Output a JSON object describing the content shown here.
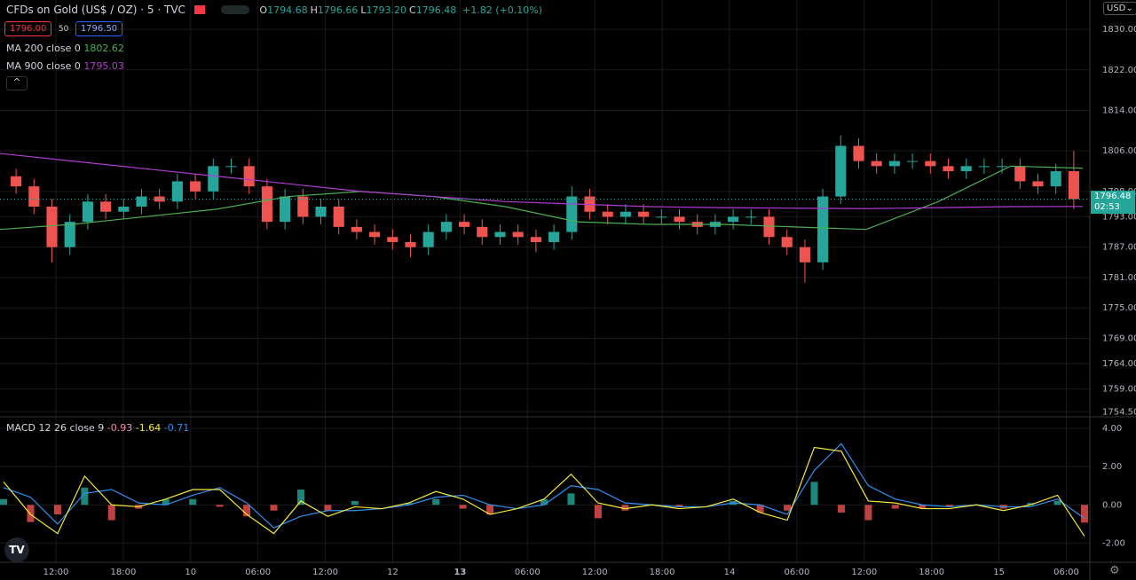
{
  "chart_data": {
    "type": "candlestick",
    "header": {
      "symbol": "CFDs on Gold (US$ / OZ) · 5 · TVC",
      "ohlc": [
        {
          "label": "O",
          "value": "1794.68"
        },
        {
          "label": "H",
          "value": "1796.66"
        },
        {
          "label": "L",
          "value": "1793.20"
        },
        {
          "label": "C",
          "value": "1796.48"
        }
      ],
      "change": "+1.82 (+0.10%)",
      "bid": "1796.00",
      "spread": "50",
      "ask": "1796.50",
      "currency": "USD",
      "last_price": "1796.48",
      "countdown": "02:53"
    },
    "up_color": "#26a69a",
    "down_color": "#ef5350",
    "ylim": [
      1753.5,
      1835.8
    ],
    "yticks": [
      {
        "value": 1830,
        "label": "1830.00"
      },
      {
        "value": 1822,
        "label": "1822.00"
      },
      {
        "value": 1814,
        "label": "1814.00"
      },
      {
        "value": 1806,
        "label": "1806.00"
      },
      {
        "value": 1798,
        "label": "1798.00"
      },
      {
        "value": 1793,
        "label": "1793.00"
      },
      {
        "value": 1787,
        "label": "1787.00"
      },
      {
        "value": 1781,
        "label": "1781.00"
      },
      {
        "value": 1775,
        "label": "1775.00"
      },
      {
        "value": 1769,
        "label": "1769.00"
      },
      {
        "value": 1764,
        "label": "1764.00"
      },
      {
        "value": 1759,
        "label": "1759.00"
      },
      {
        "value": 1754.5,
        "label": "1754.50"
      }
    ],
    "x_labels": [
      "12:00",
      "18:00",
      "10",
      "06:00",
      "12:00",
      "12",
      "13",
      "06:00",
      "12:00",
      "18:00",
      "14",
      "06:00",
      "12:00",
      "18:00",
      "15",
      "06:00"
    ],
    "ohlc": [
      [
        1801,
        1802.5,
        1797.5,
        1799
      ],
      [
        1799,
        1800.5,
        1793.5,
        1795
      ],
      [
        1795,
        1796.5,
        1784,
        1787
      ],
      [
        1787,
        1793.5,
        1785.5,
        1792
      ],
      [
        1792,
        1797.5,
        1790.5,
        1796
      ],
      [
        1796,
        1797.5,
        1792.5,
        1794
      ],
      [
        1794,
        1796.5,
        1792.5,
        1795
      ],
      [
        1795,
        1798.5,
        1793.5,
        1797
      ],
      [
        1797,
        1798.5,
        1794.5,
        1796
      ],
      [
        1796,
        1801.5,
        1794.5,
        1800
      ],
      [
        1800,
        1801.5,
        1796.5,
        1798
      ],
      [
        1798,
        1804.5,
        1796.5,
        1803
      ],
      [
        1803,
        1804.5,
        1801.5,
        1803
      ],
      [
        1803,
        1804.5,
        1797.5,
        1799
      ],
      [
        1799,
        1800.5,
        1790.5,
        1792
      ],
      [
        1792,
        1798.5,
        1790.5,
        1797
      ],
      [
        1797,
        1798.5,
        1791.5,
        1793
      ],
      [
        1793,
        1796.5,
        1791.5,
        1795
      ],
      [
        1795,
        1796.5,
        1789.5,
        1791
      ],
      [
        1791,
        1792.5,
        1788.5,
        1790
      ],
      [
        1790,
        1791.5,
        1787.5,
        1789
      ],
      [
        1789,
        1790.5,
        1786.5,
        1788
      ],
      [
        1788,
        1789.5,
        1785,
        1787
      ],
      [
        1787,
        1791.5,
        1785.5,
        1790
      ],
      [
        1790,
        1793.5,
        1788.5,
        1792
      ],
      [
        1792,
        1793.5,
        1789.5,
        1791
      ],
      [
        1791,
        1792.5,
        1787.5,
        1789
      ],
      [
        1789,
        1791.5,
        1787.5,
        1790
      ],
      [
        1790,
        1791.5,
        1787.5,
        1789
      ],
      [
        1789,
        1790.5,
        1786,
        1788
      ],
      [
        1788,
        1791.5,
        1786.5,
        1790
      ],
      [
        1790,
        1799,
        1788.5,
        1797
      ],
      [
        1797,
        1798.5,
        1792.5,
        1794
      ],
      [
        1794,
        1795.5,
        1791.5,
        1793
      ],
      [
        1793,
        1795.5,
        1791.5,
        1794
      ],
      [
        1794,
        1795.5,
        1791.5,
        1793
      ],
      [
        1793,
        1794.5,
        1791.5,
        1793
      ],
      [
        1793,
        1794.5,
        1790.5,
        1792
      ],
      [
        1792,
        1793.5,
        1789.5,
        1791
      ],
      [
        1791,
        1793.5,
        1789.5,
        1792
      ],
      [
        1792,
        1794.5,
        1790.5,
        1793
      ],
      [
        1793,
        1794.5,
        1791.5,
        1793
      ],
      [
        1793,
        1794.5,
        1787.5,
        1789
      ],
      [
        1789,
        1790.5,
        1785.5,
        1787
      ],
      [
        1787,
        1788.5,
        1780,
        1784
      ],
      [
        1784,
        1798.5,
        1782.5,
        1797
      ],
      [
        1797,
        1809,
        1795.5,
        1807
      ],
      [
        1807,
        1808.5,
        1802.5,
        1804
      ],
      [
        1804,
        1805.5,
        1801.5,
        1803
      ],
      [
        1803,
        1805.5,
        1801.5,
        1804
      ],
      [
        1804,
        1805.5,
        1802.5,
        1804
      ],
      [
        1804,
        1805.5,
        1801.5,
        1803
      ],
      [
        1803,
        1804.5,
        1800.5,
        1802
      ],
      [
        1802,
        1804.5,
        1800.5,
        1803
      ],
      [
        1803,
        1804.5,
        1801.5,
        1803
      ],
      [
        1803,
        1804.5,
        1801.5,
        1803
      ],
      [
        1803,
        1804.5,
        1798.5,
        1800
      ],
      [
        1800,
        1801.5,
        1797.5,
        1799
      ],
      [
        1799,
        1803.5,
        1797.5,
        1802
      ],
      [
        1802,
        1806,
        1794.5,
        1796.48
      ]
    ],
    "series": [
      {
        "name": "MA 200 close 0",
        "color": "#4caf50",
        "last": 1802.62,
        "values": [
          1790.5,
          1791.5,
          1793,
          1794.5,
          1797,
          1798,
          1797,
          1795,
          1792,
          1791.5,
          1791.5,
          1791,
          1790.5,
          1796,
          1803,
          1802.6
        ]
      },
      {
        "name": "MA 900 close 0",
        "color": "#b03bd0",
        "last": 1795.03,
        "values": [
          1805.5,
          1804,
          1802.5,
          1801,
          1799.5,
          1798,
          1797,
          1796,
          1795.5,
          1795,
          1794.8,
          1794.7,
          1794.6,
          1794.8,
          1795,
          1795.03
        ]
      }
    ],
    "macd": {
      "name": "MACD 12 26 close 9",
      "ylim": [
        -3.0,
        4.6
      ],
      "yticks": [
        {
          "value": 4,
          "label": "4.00"
        },
        {
          "value": 2,
          "label": "2.00"
        },
        {
          "value": 0,
          "label": "0.00"
        },
        {
          "value": -2,
          "label": "-2.00"
        }
      ],
      "histogram": {
        "color_up": "#26a69a",
        "color_down": "#ef5350",
        "last": -0.93,
        "values": [
          0.3,
          -0.9,
          -0.5,
          0.9,
          -0.8,
          -0.2,
          0.3,
          0.3,
          -0.1,
          -0.6,
          -0.3,
          0.8,
          -0.3,
          0.2,
          0.0,
          0.1,
          0.3,
          -0.2,
          -0.5,
          0.0,
          0.3,
          0.6,
          -0.7,
          -0.3,
          0.0,
          -0.1,
          0.0,
          0.2,
          -0.4,
          -0.3,
          1.2,
          -0.4,
          -0.8,
          -0.2,
          -0.2,
          -0.1,
          0.0,
          -0.2,
          0.1,
          0.2,
          -0.93
        ]
      },
      "macd_line": {
        "color": "#f5e93a",
        "last": -1.64,
        "values": [
          1.2,
          -0.5,
          -1.5,
          1.5,
          0.0,
          -0.1,
          0.3,
          0.8,
          0.8,
          -0.5,
          -1.5,
          0.2,
          -0.6,
          -0.1,
          -0.2,
          0.1,
          0.7,
          0.3,
          -0.5,
          -0.2,
          0.3,
          1.6,
          0.1,
          -0.2,
          0.0,
          -0.2,
          -0.1,
          0.3,
          -0.4,
          -0.8,
          3.0,
          2.8,
          0.2,
          0.1,
          -0.2,
          -0.2,
          0.0,
          -0.3,
          0.0,
          0.5,
          -1.64
        ]
      },
      "signal_line": {
        "color": "#2f8ff0",
        "last": -0.71,
        "values": [
          0.9,
          0.4,
          -1.0,
          0.6,
          0.8,
          0.1,
          0.0,
          0.5,
          0.9,
          0.1,
          -1.2,
          -0.6,
          -0.3,
          -0.3,
          -0.2,
          0.0,
          0.4,
          0.5,
          0.0,
          -0.2,
          0.0,
          1.0,
          0.8,
          0.1,
          0.0,
          -0.1,
          -0.1,
          0.1,
          0.0,
          -0.5,
          1.8,
          3.2,
          1.0,
          0.3,
          0.0,
          -0.1,
          0.0,
          -0.1,
          -0.1,
          0.3,
          -0.71
        ]
      }
    }
  }
}
